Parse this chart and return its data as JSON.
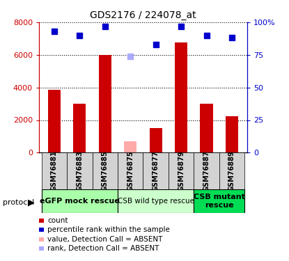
{
  "title": "GDS2176 / 224078_at",
  "samples": [
    "GSM76881",
    "GSM76883",
    "GSM76885",
    "GSM76875",
    "GSM76877",
    "GSM76879",
    "GSM76887",
    "GSM76889"
  ],
  "counts": [
    3850,
    3000,
    6000,
    null,
    1500,
    6750,
    3000,
    2250
  ],
  "counts_absent": [
    null,
    null,
    null,
    700,
    null,
    null,
    null,
    null
  ],
  "ranks": [
    93,
    90,
    97,
    null,
    83,
    97,
    90,
    88
  ],
  "ranks_absent": [
    null,
    null,
    null,
    74,
    null,
    null,
    null,
    null
  ],
  "bar_color": "#cc0000",
  "bar_absent_color": "#ffaaaa",
  "rank_color": "#0000cc",
  "rank_absent_color": "#aaaaff",
  "ylim_left": [
    0,
    8000
  ],
  "ylim_right": [
    0,
    100
  ],
  "yticks_left": [
    0,
    2000,
    4000,
    6000,
    8000
  ],
  "ytick_labels_left": [
    "0",
    "2000",
    "4000",
    "6000",
    "8000"
  ],
  "ytick_labels_right": [
    "0",
    "25",
    "50",
    "75",
    "100%"
  ],
  "protocol_groups": [
    {
      "label": "eGFP mock rescue",
      "start": 0,
      "end": 3,
      "color": "#aaffaa",
      "fontsize": 8,
      "bold": true
    },
    {
      "label": "CSB wild type rescue",
      "start": 3,
      "end": 6,
      "color": "#ccffcc",
      "fontsize": 7.5,
      "bold": false
    },
    {
      "label": "CSB mutant\nrescue",
      "start": 6,
      "end": 8,
      "color": "#00dd55",
      "fontsize": 8,
      "bold": true
    }
  ],
  "legend_items": [
    {
      "color": "#cc0000",
      "label": "count"
    },
    {
      "color": "#0000cc",
      "label": "percentile rank within the sample"
    },
    {
      "color": "#ffaaaa",
      "label": "value, Detection Call = ABSENT"
    },
    {
      "color": "#aaaaff",
      "label": "rank, Detection Call = ABSENT"
    }
  ],
  "protocol_label": "protocol",
  "sample_box_color": "#d3d3d3",
  "background_color": "#ffffff"
}
